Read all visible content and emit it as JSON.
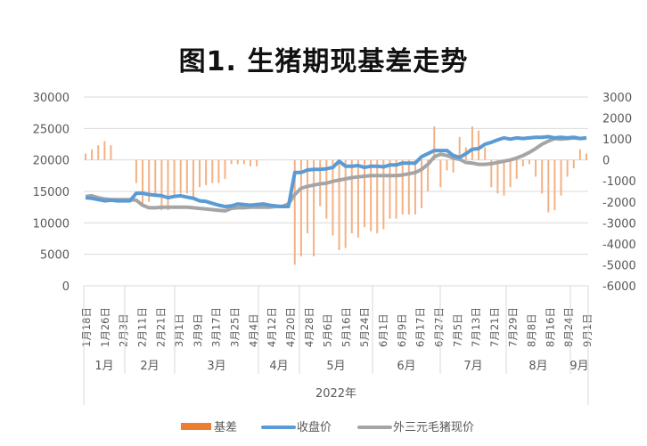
{
  "title": "图1. 生猪期现基差走势",
  "chart_data": {
    "type": "bar+line",
    "title": "图1. 生猪期现基差走势",
    "left_axis": {
      "ticks": [
        "30000",
        "25000",
        "20000",
        "15000",
        "10000",
        "5000",
        "0"
      ],
      "range": [
        0,
        30000
      ]
    },
    "right_axis": {
      "ticks": [
        "3000",
        "2000",
        "1000",
        "0",
        "-1000",
        "-2000",
        "-3000",
        "-4000",
        "-5000",
        "-6000"
      ],
      "range": [
        -6000,
        3000
      ]
    },
    "x_tick_labels": [
      "1月18日",
      "1月26日",
      "2月3日",
      "2月11日",
      "2月21日",
      "3月1日",
      "3月9日",
      "3月17日",
      "3月25日",
      "4月4日",
      "4月12日",
      "4月20日",
      "4月28日",
      "5月6日",
      "5月16日",
      "5月24日",
      "6月1日",
      "6月9日",
      "6月17日",
      "6月27日",
      "7月5日",
      "7月13日",
      "7月21日",
      "7月29日",
      "8月8日",
      "8月16日",
      "8月24日",
      "9月1日"
    ],
    "months": [
      "1月",
      "2月",
      "3月",
      "4月",
      "5月",
      "6月",
      "7月",
      "8月",
      "9月"
    ],
    "year_label": "2022年",
    "legend": [
      {
        "name": "基差",
        "color": "#ED7D31",
        "kind": "bar"
      },
      {
        "name": "收盘价",
        "color": "#5B9BD5",
        "kind": "line"
      },
      {
        "name": "外三元毛猪现价",
        "color": "#A5A5A5",
        "kind": "line"
      }
    ],
    "series": [
      {
        "name": "收盘价",
        "axis": "left",
        "values": [
          14000,
          13900,
          13700,
          13500,
          13600,
          13500,
          13500,
          13500,
          14700,
          14700,
          14500,
          14400,
          14300,
          14000,
          14200,
          14300,
          14100,
          13900,
          13500,
          13400,
          13100,
          12800,
          12600,
          12700,
          13000,
          12900,
          12800,
          12900,
          13000,
          12800,
          12700,
          12600,
          12600,
          18000,
          18000,
          18400,
          18500,
          18500,
          18600,
          18800,
          19800,
          19000,
          19000,
          19100,
          18800,
          19000,
          19000,
          18900,
          19200,
          19200,
          19500,
          19500,
          19500,
          20500,
          21000,
          21500,
          21500,
          21500,
          20700,
          20400,
          21000,
          21700,
          21800,
          22500,
          22800,
          23200,
          23500,
          23300,
          23500,
          23400,
          23500,
          23600,
          23600,
          23700,
          23500,
          23600,
          23500,
          23600,
          23400,
          23500
        ]
      },
      {
        "name": "外三元毛猪现价",
        "axis": "left",
        "values": [
          14200,
          14300,
          14000,
          13800,
          13700,
          13700,
          13700,
          13700,
          13600,
          12800,
          12400,
          12400,
          12500,
          12500,
          12500,
          12500,
          12500,
          12400,
          12300,
          12200,
          12100,
          12000,
          11900,
          12300,
          12400,
          12400,
          12500,
          12500,
          12500,
          12500,
          12600,
          12600,
          13000,
          14500,
          15500,
          15800,
          16000,
          16200,
          16300,
          16600,
          16800,
          17000,
          17200,
          17300,
          17400,
          17500,
          17500,
          17500,
          17500,
          17500,
          17600,
          17800,
          18000,
          18500,
          19300,
          20500,
          20900,
          20700,
          20300,
          20100,
          19600,
          19500,
          19300,
          19300,
          19400,
          19600,
          19800,
          20000,
          20300,
          20700,
          21200,
          21800,
          22500,
          23000,
          23400,
          23300,
          23400,
          23500,
          23400,
          23500
        ]
      },
      {
        "name": "基差",
        "axis": "right",
        "values": [
          300,
          500,
          700,
          900,
          700,
          0,
          0,
          0,
          -1100,
          -2100,
          -2000,
          -1600,
          -2400,
          -2400,
          -1700,
          -1600,
          -1600,
          -1800,
          -1300,
          -1200,
          -1100,
          -1100,
          -900,
          -200,
          -200,
          -200,
          -300,
          -300,
          0,
          0,
          0,
          0,
          0,
          -5000,
          -4600,
          -3500,
          -4600,
          -2200,
          -2800,
          -3600,
          -4300,
          -4200,
          -3500,
          -3700,
          -3200,
          -3400,
          -3500,
          -3300,
          -2800,
          -2800,
          -2600,
          -2600,
          -2600,
          -2300,
          -1500,
          1600,
          -1300,
          -500,
          -600,
          1100,
          600,
          1600,
          1400,
          600,
          -1300,
          -1600,
          -1700,
          -1300,
          -900,
          -300,
          -200,
          -800,
          -1600,
          -2500,
          -2400,
          -1700,
          -800,
          -400,
          500,
          300
        ]
      }
    ]
  }
}
